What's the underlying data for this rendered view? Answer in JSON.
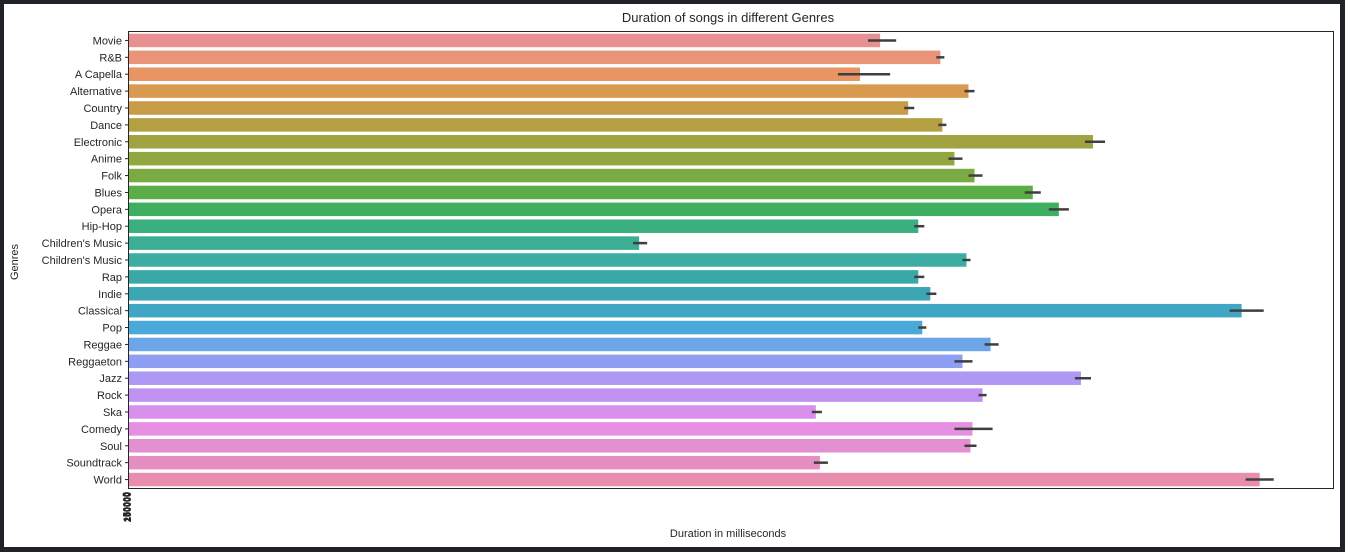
{
  "chart_data": {
    "type": "bar",
    "orientation": "horizontal",
    "title": "Duration of songs in different Genres",
    "xlabel": "Duration in milliseconds",
    "ylabel": "Genres",
    "xlim": [
      0,
      300000
    ],
    "x_tick_labels_overlapping": true,
    "grid": false,
    "legend": false,
    "categories": [
      "Movie",
      "R&B",
      "A Capella",
      "Alternative",
      "Country",
      "Dance",
      "Electronic",
      "Anime",
      "Folk",
      "Blues",
      "Opera",
      "Hip-Hop",
      "Children's Music",
      "Children's Music",
      "Rap",
      "Indie",
      "Classical",
      "Pop",
      "Reggae",
      "Reggaeton",
      "Jazz",
      "Rock",
      "Ska",
      "Comedy",
      "Soul",
      "Soundtrack",
      "World"
    ],
    "values": [
      187000,
      202000,
      182000,
      209000,
      194000,
      202500,
      240000,
      205500,
      210500,
      225000,
      231500,
      196500,
      127000,
      208500,
      196500,
      199500,
      277000,
      197500,
      214500,
      207500,
      237000,
      212500,
      171000,
      210000,
      209500,
      172000,
      281500
    ],
    "error_low": [
      184000,
      201000,
      176500,
      208000,
      193000,
      201500,
      238000,
      204000,
      209000,
      223000,
      229000,
      195500,
      125500,
      207500,
      195500,
      198500,
      274000,
      196500,
      213000,
      205500,
      235500,
      211500,
      170000,
      205500,
      208000,
      170500,
      278000
    ],
    "error_high": [
      191000,
      203000,
      189500,
      210500,
      195500,
      203500,
      243000,
      207500,
      212500,
      227000,
      234000,
      198000,
      129000,
      209500,
      198000,
      201000,
      282500,
      198500,
      216500,
      210000,
      239500,
      213500,
      172500,
      215000,
      211000,
      174000,
      285000
    ],
    "colors": [
      "#e8908f",
      "#e99479",
      "#e89563",
      "#d89a4e",
      "#c89b47",
      "#b49f42",
      "#a0a33f",
      "#90a83f",
      "#7aab43",
      "#5aad47",
      "#3eae61",
      "#3caf80",
      "#3bae93",
      "#3dada3",
      "#3ba8a8",
      "#3da6b4",
      "#41a5c6",
      "#49a9d8",
      "#6ca5e8",
      "#8e9ff3",
      "#ad99f4",
      "#c091f0",
      "#d990ea",
      "#e68fe3",
      "#e48fd1",
      "#e58ec1",
      "#e88dad"
    ]
  }
}
